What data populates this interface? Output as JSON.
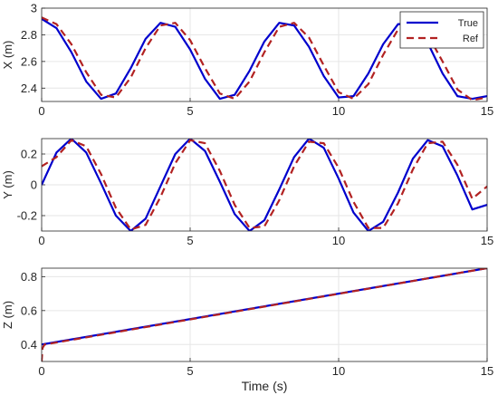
{
  "chart_data": [
    {
      "type": "line",
      "ylabel": "X (m)",
      "xlabel": "",
      "xlim": [
        0,
        15
      ],
      "ylim": [
        2.3,
        3.0
      ],
      "xticks": [
        "0",
        "5",
        "10",
        "15"
      ],
      "yticks": [
        "2.4",
        "2.6",
        "2.8",
        "3"
      ],
      "grid": true,
      "legend": {
        "placement": "top-right",
        "entries": [
          "True",
          "Ref"
        ]
      },
      "series": [
        {
          "name": "True",
          "color": "#0000cd",
          "style": "solid",
          "x": [
            0,
            0.5,
            1,
            1.5,
            2,
            2.5,
            3,
            3.5,
            4,
            4.5,
            5,
            5.5,
            6,
            6.5,
            7,
            7.5,
            8,
            8.5,
            9,
            9.5,
            10,
            10.5,
            11,
            11.5,
            12,
            12.5,
            13,
            13.5,
            14,
            14.5,
            15
          ],
          "y": [
            2.92,
            2.85,
            2.67,
            2.45,
            2.32,
            2.36,
            2.55,
            2.77,
            2.89,
            2.86,
            2.69,
            2.47,
            2.32,
            2.35,
            2.53,
            2.75,
            2.89,
            2.87,
            2.71,
            2.49,
            2.33,
            2.34,
            2.51,
            2.73,
            2.88,
            2.88,
            2.74,
            2.51,
            2.34,
            2.32,
            2.34
          ]
        },
        {
          "name": "Ref",
          "color": "#b22222",
          "style": "dashed",
          "x": [
            0,
            0.5,
            1,
            1.5,
            2,
            2.5,
            3,
            3.5,
            4,
            4.5,
            5,
            5.5,
            6,
            6.5,
            7,
            7.5,
            8,
            8.5,
            9,
            9.5,
            10,
            10.5,
            11,
            11.5,
            12,
            12.5,
            13,
            13.5,
            14,
            14.5,
            15
          ],
          "y": [
            2.93,
            2.88,
            2.73,
            2.52,
            2.35,
            2.33,
            2.48,
            2.7,
            2.87,
            2.89,
            2.76,
            2.55,
            2.36,
            2.32,
            2.45,
            2.67,
            2.86,
            2.89,
            2.78,
            2.57,
            2.37,
            2.32,
            2.43,
            2.65,
            2.84,
            2.9,
            2.8,
            2.6,
            2.39,
            2.31,
            2.33
          ]
        }
      ]
    },
    {
      "type": "line",
      "ylabel": "Y (m)",
      "xlabel": "",
      "xlim": [
        0,
        15
      ],
      "ylim": [
        -0.3,
        0.3
      ],
      "xticks": [
        "0",
        "5",
        "10",
        "15"
      ],
      "yticks": [
        "-0.2",
        "0",
        "0.2"
      ],
      "grid": true,
      "series": [
        {
          "name": "True",
          "color": "#0000cd",
          "style": "solid",
          "x": [
            0,
            0.5,
            1,
            1.5,
            2,
            2.5,
            3,
            3.5,
            4,
            4.5,
            5,
            5.5,
            6,
            6.5,
            7,
            7.5,
            8,
            8.5,
            9,
            9.5,
            10,
            10.5,
            11,
            11.5,
            12,
            12.5,
            13,
            13.5,
            14,
            14.5,
            15
          ],
          "y": [
            0.0,
            0.21,
            0.3,
            0.21,
            0.01,
            -0.2,
            -0.3,
            -0.22,
            -0.01,
            0.2,
            0.3,
            0.22,
            0.02,
            -0.19,
            -0.3,
            -0.23,
            -0.03,
            0.18,
            0.3,
            0.24,
            0.04,
            -0.18,
            -0.3,
            -0.24,
            -0.05,
            0.17,
            0.29,
            0.25,
            0.06,
            -0.16,
            -0.13
          ]
        },
        {
          "name": "Ref",
          "color": "#b22222",
          "style": "dashed",
          "x": [
            0,
            0.5,
            1,
            1.5,
            2,
            2.5,
            3,
            3.5,
            4,
            4.5,
            5,
            5.5,
            6,
            6.5,
            7,
            7.5,
            8,
            8.5,
            9,
            9.5,
            10,
            10.5,
            11,
            11.5,
            12,
            12.5,
            13,
            13.5,
            14,
            14.5,
            15
          ],
          "y": [
            0.12,
            0.18,
            0.29,
            0.25,
            0.07,
            -0.15,
            -0.29,
            -0.26,
            -0.08,
            0.14,
            0.29,
            0.27,
            0.09,
            -0.13,
            -0.28,
            -0.27,
            -0.1,
            0.12,
            0.28,
            0.27,
            0.11,
            -0.11,
            -0.28,
            -0.28,
            -0.12,
            0.1,
            0.27,
            0.28,
            0.13,
            -0.09,
            -0.01
          ]
        }
      ]
    },
    {
      "type": "line",
      "ylabel": "Z (m)",
      "xlabel": "Time (s)",
      "xlim": [
        0,
        15
      ],
      "ylim": [
        0.3,
        0.85
      ],
      "xticks": [
        "0",
        "5",
        "10",
        "15"
      ],
      "yticks": [
        "0.4",
        "0.6",
        "0.8"
      ],
      "grid": true,
      "series": [
        {
          "name": "True",
          "color": "#0000cd",
          "style": "solid",
          "x": [
            0,
            15
          ],
          "y": [
            0.4,
            0.85
          ]
        },
        {
          "name": "Ref",
          "color": "#b22222",
          "style": "dashed",
          "x": [
            0,
            0.03,
            0.1,
            15
          ],
          "y": [
            0.3,
            0.38,
            0.4,
            0.85
          ]
        }
      ]
    }
  ]
}
